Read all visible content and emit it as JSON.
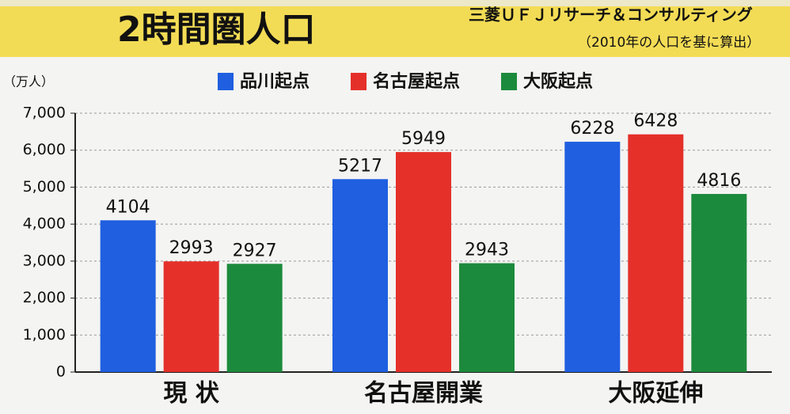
{
  "chart_data": {
    "type": "bar",
    "title": "2時間圏人口",
    "source": "三菱ＵＦＪリサーチ＆コンサルティング",
    "subtitle": "（2010年の人口を基に算出）",
    "y_label": "（万人）",
    "categories": [
      "現 状",
      "名古屋開業",
      "大阪延伸"
    ],
    "series": [
      {
        "name": "品川起点",
        "color": "#1f5fe0",
        "values": [
          4104,
          5217,
          6228
        ]
      },
      {
        "name": "名古屋起点",
        "color": "#e5302a",
        "values": [
          2993,
          5949,
          6428
        ]
      },
      {
        "name": "大阪起点",
        "color": "#1c8a3c",
        "values": [
          2927,
          2943,
          4816
        ]
      }
    ],
    "ylim": [
      0,
      7000
    ],
    "yticks": [
      0,
      {
        "value": 1000,
        "label": "1,000"
      },
      {
        "value": 2000,
        "label": "2,000"
      },
      {
        "value": 3000,
        "label": "3,000"
      },
      {
        "value": 4000,
        "label": "4,000"
      },
      {
        "value": 5000,
        "label": "5,000"
      },
      {
        "value": 6000,
        "label": "6,000"
      },
      {
        "value": 7000,
        "label": "7,000"
      }
    ],
    "grid": true
  }
}
